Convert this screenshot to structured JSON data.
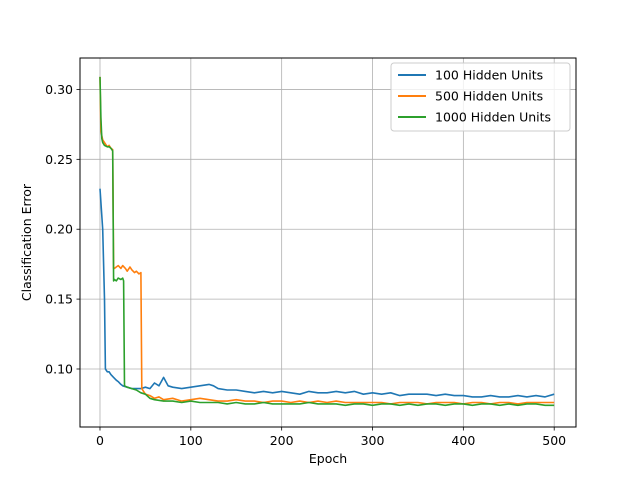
{
  "chart_data": {
    "type": "line",
    "title": "",
    "xlabel": "Epoch",
    "ylabel": "Classification Error",
    "xlim": [
      -22,
      524
    ],
    "ylim": [
      0.0585,
      0.3225
    ],
    "xticks": [
      0,
      100,
      200,
      300,
      400,
      500
    ],
    "yticks": [
      0.1,
      0.15,
      0.2,
      0.25,
      0.3
    ],
    "xtick_labels": [
      "0",
      "100",
      "200",
      "300",
      "400",
      "500"
    ],
    "ytick_labels": [
      "0.10",
      "0.15",
      "0.20",
      "0.25",
      "0.30"
    ],
    "grid": true,
    "legend_position": "top-right",
    "series": [
      {
        "name": "100 Hidden Units",
        "color": "#1f77b4",
        "x": [
          0,
          3,
          5,
          6,
          8,
          10,
          12,
          15,
          18,
          20,
          23,
          25,
          30,
          35,
          40,
          45,
          50,
          55,
          60,
          65,
          70,
          75,
          80,
          90,
          100,
          110,
          120,
          125,
          130,
          140,
          150,
          160,
          170,
          180,
          190,
          200,
          210,
          220,
          230,
          240,
          250,
          260,
          270,
          280,
          290,
          300,
          310,
          320,
          330,
          340,
          350,
          360,
          370,
          380,
          390,
          400,
          410,
          420,
          430,
          440,
          450,
          460,
          470,
          480,
          490,
          500
        ],
        "y": [
          0.229,
          0.2,
          0.15,
          0.1,
          0.098,
          0.098,
          0.096,
          0.094,
          0.092,
          0.091,
          0.089,
          0.088,
          0.087,
          0.086,
          0.086,
          0.086,
          0.087,
          0.086,
          0.09,
          0.088,
          0.094,
          0.088,
          0.087,
          0.086,
          0.087,
          0.088,
          0.089,
          0.088,
          0.086,
          0.085,
          0.085,
          0.084,
          0.083,
          0.084,
          0.083,
          0.084,
          0.083,
          0.082,
          0.084,
          0.083,
          0.083,
          0.084,
          0.083,
          0.084,
          0.082,
          0.083,
          0.082,
          0.083,
          0.081,
          0.082,
          0.082,
          0.082,
          0.081,
          0.082,
          0.081,
          0.081,
          0.08,
          0.08,
          0.081,
          0.08,
          0.08,
          0.081,
          0.08,
          0.081,
          0.08,
          0.082
        ]
      },
      {
        "name": "500 Hidden Units",
        "color": "#ff7f0e",
        "x": [
          0,
          1,
          3,
          5,
          8,
          10,
          12,
          14,
          15,
          16,
          18,
          20,
          23,
          25,
          28,
          30,
          33,
          35,
          38,
          40,
          43,
          45,
          46,
          48,
          50,
          55,
          60,
          65,
          70,
          80,
          90,
          100,
          110,
          120,
          130,
          140,
          150,
          160,
          170,
          180,
          190,
          200,
          210,
          220,
          230,
          240,
          250,
          260,
          270,
          280,
          290,
          300,
          310,
          320,
          330,
          340,
          350,
          360,
          370,
          380,
          390,
          400,
          410,
          420,
          430,
          440,
          450,
          460,
          470,
          480,
          490,
          500
        ],
        "y": [
          0.309,
          0.27,
          0.264,
          0.262,
          0.259,
          0.26,
          0.258,
          0.257,
          0.172,
          0.172,
          0.173,
          0.174,
          0.172,
          0.174,
          0.172,
          0.17,
          0.173,
          0.171,
          0.169,
          0.17,
          0.168,
          0.169,
          0.086,
          0.084,
          0.082,
          0.081,
          0.079,
          0.08,
          0.078,
          0.079,
          0.077,
          0.078,
          0.079,
          0.078,
          0.077,
          0.077,
          0.078,
          0.077,
          0.077,
          0.076,
          0.077,
          0.077,
          0.076,
          0.077,
          0.076,
          0.077,
          0.076,
          0.077,
          0.076,
          0.076,
          0.076,
          0.076,
          0.076,
          0.075,
          0.076,
          0.076,
          0.076,
          0.075,
          0.076,
          0.076,
          0.076,
          0.075,
          0.076,
          0.076,
          0.075,
          0.076,
          0.076,
          0.075,
          0.076,
          0.076,
          0.076,
          0.076
        ]
      },
      {
        "name": "1000 Hidden Units",
        "color": "#2ca02c",
        "x": [
          0,
          1,
          2,
          3,
          5,
          8,
          10,
          12,
          14,
          15,
          16,
          18,
          20,
          23,
          25,
          26,
          27,
          30,
          35,
          40,
          45,
          50,
          55,
          60,
          70,
          80,
          90,
          100,
          110,
          120,
          130,
          140,
          150,
          160,
          170,
          180,
          190,
          200,
          210,
          220,
          230,
          240,
          250,
          260,
          270,
          280,
          290,
          300,
          310,
          320,
          330,
          340,
          350,
          360,
          370,
          380,
          390,
          400,
          410,
          420,
          430,
          440,
          450,
          460,
          470,
          480,
          490,
          500
        ],
        "y": [
          0.309,
          0.28,
          0.265,
          0.262,
          0.26,
          0.259,
          0.259,
          0.258,
          0.256,
          0.163,
          0.164,
          0.163,
          0.165,
          0.164,
          0.165,
          0.163,
          0.088,
          0.087,
          0.086,
          0.085,
          0.083,
          0.082,
          0.079,
          0.078,
          0.077,
          0.077,
          0.076,
          0.077,
          0.076,
          0.076,
          0.076,
          0.075,
          0.076,
          0.075,
          0.075,
          0.076,
          0.075,
          0.075,
          0.075,
          0.075,
          0.076,
          0.075,
          0.075,
          0.075,
          0.074,
          0.075,
          0.075,
          0.074,
          0.075,
          0.075,
          0.074,
          0.075,
          0.074,
          0.075,
          0.075,
          0.074,
          0.075,
          0.075,
          0.074,
          0.075,
          0.075,
          0.074,
          0.075,
          0.074,
          0.075,
          0.075,
          0.074,
          0.074
        ]
      }
    ]
  },
  "legend": {
    "items": [
      "100 Hidden Units",
      "500 Hidden Units",
      "1000 Hidden Units"
    ]
  }
}
